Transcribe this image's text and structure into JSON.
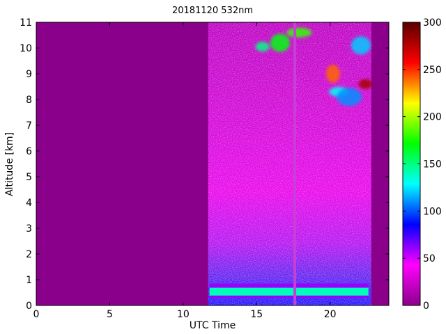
{
  "chart_data": {
    "type": "heatmap",
    "title": "20181120 532nm",
    "xlabel": "UTC Time",
    "ylabel": "Altitude [km]",
    "xlim": [
      0,
      24
    ],
    "ylim": [
      0,
      11
    ],
    "x_ticks": [
      0,
      5,
      10,
      15,
      20
    ],
    "y_ticks": [
      0,
      1,
      2,
      3,
      4,
      5,
      6,
      7,
      8,
      9,
      10,
      11
    ],
    "colorbar": {
      "range": [
        0,
        300
      ],
      "ticks": [
        0,
        50,
        100,
        150,
        200,
        250,
        300
      ],
      "colormap": [
        "#8b008b",
        "#ff00ff",
        "#0000ff",
        "#00ffff",
        "#00ff00",
        "#ffff00",
        "#ff0000",
        "#5a0000"
      ]
    },
    "background_color": "#8b008b",
    "data_window": {
      "start": 11.7,
      "end": 22.8
    },
    "gap_time": 17.6,
    "surface_layer": {
      "bottom": 0.3,
      "top": 0.85,
      "value": 140
    },
    "high_clouds": [
      {
        "x": 15.4,
        "y": 10.05,
        "value": 150
      },
      {
        "x": 16.6,
        "y": 10.2,
        "value": 170
      },
      {
        "x": 17.9,
        "y": 10.6,
        "value": 180
      },
      {
        "x": 20.2,
        "y": 9.0,
        "value": 240
      },
      {
        "x": 20.6,
        "y": 8.3,
        "value": 130
      },
      {
        "x": 21.3,
        "y": 8.1,
        "value": 110
      },
      {
        "x": 22.4,
        "y": 8.6,
        "value": 280
      },
      {
        "x": 22.1,
        "y": 10.1,
        "value": 120
      }
    ]
  }
}
